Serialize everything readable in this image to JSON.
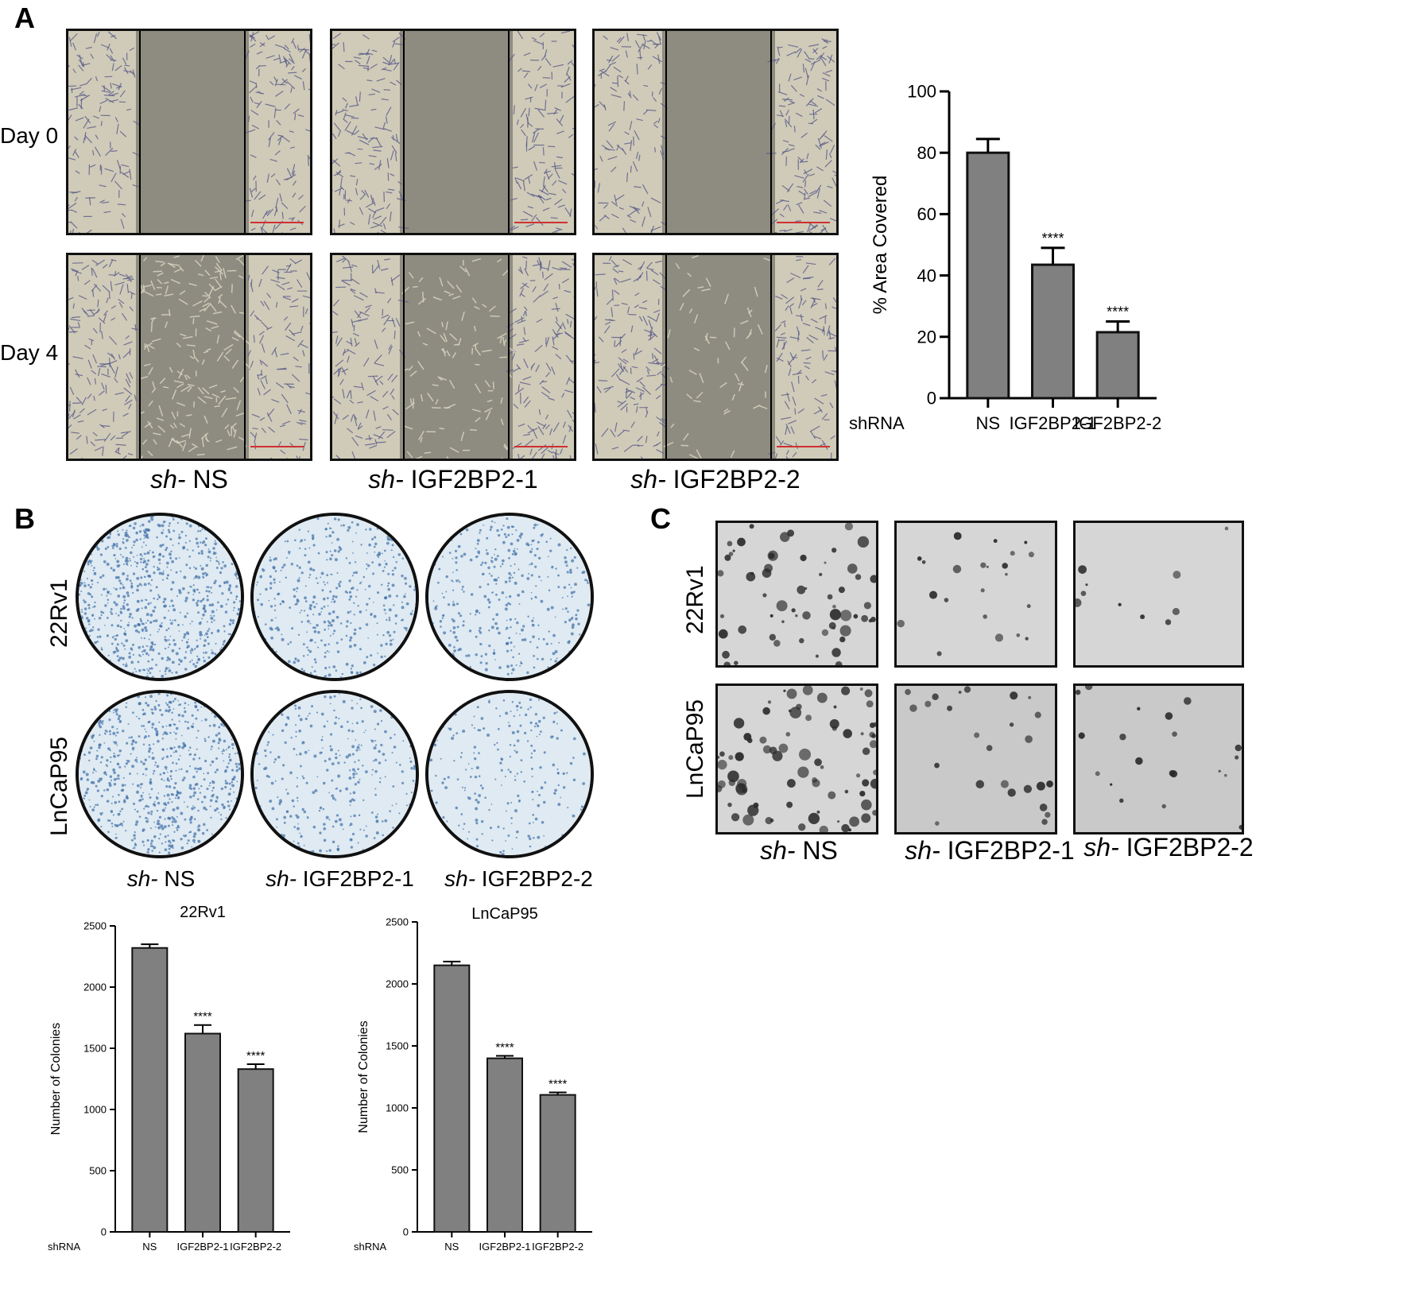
{
  "panels": {
    "A": {
      "letter": "A",
      "rows": [
        "Day 0",
        "Day 4"
      ],
      "conditions": [
        {
          "prefix": "sh-",
          "name": " NS"
        },
        {
          "prefix": "sh-",
          "name": " IGF2BP2-1"
        },
        {
          "prefix": "sh-",
          "name": " IGF2BP2-2"
        }
      ]
    },
    "B": {
      "letter": "B",
      "rows": [
        "22Rv1",
        "LnCaP95"
      ],
      "conditions": [
        {
          "prefix": "sh-",
          "name": " NS"
        },
        {
          "prefix": "sh-",
          "name": " IGF2BP2-1"
        },
        {
          "prefix": "sh-",
          "name": " IGF2BP2-2"
        }
      ]
    },
    "C": {
      "letter": "C",
      "rows": [
        "22Rv1",
        "LnCaP95"
      ],
      "conditions": [
        {
          "prefix": "sh-",
          "name": " NS"
        },
        {
          "prefix": "sh-",
          "name": " IGF2BP2-1"
        },
        {
          "prefix": "sh-",
          "name": " IGF2BP2-2"
        }
      ]
    }
  },
  "colors": {
    "bar": "#808080",
    "bar_stroke": "#111111",
    "wound_bg": "#8e8b80",
    "cells": "#5a5a8a",
    "dish_stain": "#3f6fa8",
    "sa_bg": "#d6d6d6"
  },
  "chart_data": [
    {
      "id": "area-covered",
      "type": "bar",
      "title": "",
      "xlabel": "shRNA",
      "ylabel": "% Area Covered",
      "categories": [
        "NS",
        "IGF2BP2-1",
        "IGF2BP2-2"
      ],
      "values": [
        80,
        43.5,
        21.5
      ],
      "errors": [
        4.5,
        5.5,
        3.5
      ],
      "significance": [
        "",
        "****",
        "****"
      ],
      "ylim": [
        0,
        100
      ],
      "yticks": [
        0,
        20,
        40,
        60,
        80,
        100
      ],
      "grid": false
    },
    {
      "id": "colonies-22rv1",
      "type": "bar",
      "title": "22Rv1",
      "xlabel": "shRNA",
      "ylabel": "Number of Colonies",
      "categories": [
        "NS",
        "IGF2BP2-1",
        "IGF2BP2-2"
      ],
      "values": [
        2320,
        1620,
        1330
      ],
      "errors": [
        30,
        70,
        40
      ],
      "significance": [
        "",
        "****",
        "****"
      ],
      "ylim": [
        0,
        2500
      ],
      "yticks": [
        0,
        500,
        1000,
        1500,
        2000,
        2500
      ],
      "grid": false
    },
    {
      "id": "colonies-lncap95",
      "type": "bar",
      "title": "LnCaP95",
      "xlabel": "shRNA",
      "ylabel": "Number of Colonies",
      "categories": [
        "NS",
        "IGF2BP2-1",
        "IGF2BP2-2"
      ],
      "values": [
        2150,
        1400,
        1105
      ],
      "errors": [
        30,
        20,
        20
      ],
      "significance": [
        "",
        "****",
        "****"
      ],
      "ylim": [
        0,
        2500
      ],
      "yticks": [
        0,
        500,
        1000,
        1500,
        2000,
        2500
      ],
      "grid": false
    }
  ]
}
